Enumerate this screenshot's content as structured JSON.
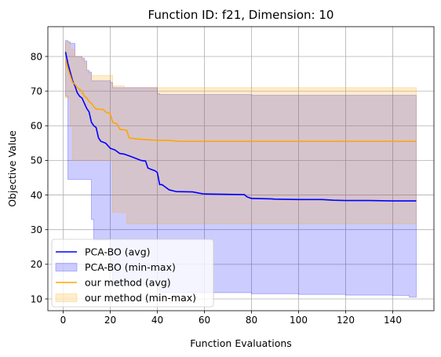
{
  "chart_data": {
    "type": "line",
    "title": "Function ID: f21, Dimension: 10",
    "xlabel": "Function Evaluations",
    "ylabel": "Objective Value",
    "xlim": [
      -6.5,
      157.5
    ],
    "ylim": [
      6.6,
      88.6
    ],
    "xticks": [
      0,
      20,
      40,
      60,
      80,
      100,
      120,
      140
    ],
    "yticks": [
      10,
      20,
      30,
      40,
      50,
      60,
      70,
      80
    ],
    "grid": true,
    "legend_position": "lower-left",
    "legend": [
      {
        "label": "PCA-BO (avg)",
        "kind": "line",
        "color": "#0000ff"
      },
      {
        "label": "PCA-BO (min-max)",
        "kind": "band",
        "color": "#0000ff"
      },
      {
        "label": "our method (avg)",
        "kind": "line",
        "color": "#ffa500"
      },
      {
        "label": "our method (min-max)",
        "kind": "band",
        "color": "#ffa500"
      }
    ],
    "series": [
      {
        "name": "PCA-BO (min-max)",
        "kind": "band",
        "color": "#0000ff",
        "fill_opacity": 0.2,
        "x": [
          1,
          2,
          3,
          5,
          6,
          8,
          9,
          10,
          11,
          12,
          13,
          20,
          21,
          40,
          41,
          80,
          100,
          120,
          140,
          147,
          150
        ],
        "upper": [
          84.6,
          84.2,
          83.8,
          80.0,
          80.0,
          79.5,
          78.7,
          76.0,
          75.5,
          73.0,
          73.0,
          72.5,
          71.0,
          69.3,
          69.0,
          68.8,
          68.8,
          68.8,
          68.8,
          68.8,
          68.8
        ],
        "lower": [
          68.5,
          44.5,
          44.5,
          44.5,
          44.5,
          44.5,
          44.5,
          44.5,
          44.5,
          33.0,
          27.0,
          21.0,
          14.0,
          12.5,
          11.8,
          11.5,
          11.3,
          11.1,
          11.0,
          10.5,
          10.5
        ]
      },
      {
        "name": "our method (min-max)",
        "kind": "band",
        "color": "#ffa500",
        "fill_opacity": 0.2,
        "x": [
          1,
          3,
          4,
          5,
          7,
          8,
          9,
          10,
          11,
          12,
          13,
          17,
          18,
          20,
          21,
          26,
          27,
          40,
          41,
          80,
          150
        ],
        "upper": [
          84.0,
          82.0,
          82.0,
          80.0,
          80.0,
          79.0,
          78.0,
          75.5,
          75.0,
          74.5,
          74.5,
          74.5,
          74.5,
          74.5,
          71.5,
          71.0,
          71.0,
          71.0,
          71.0,
          71.0,
          71.0
        ],
        "lower": [
          68.0,
          60.0,
          50.0,
          50.0,
          50.0,
          50.0,
          50.0,
          50.0,
          50.0,
          50.0,
          50.0,
          50.0,
          50.0,
          50.0,
          35.0,
          35.0,
          31.7,
          31.7,
          31.7,
          31.7,
          31.7
        ]
      },
      {
        "name": "PCA-BO (avg)",
        "kind": "line",
        "color": "#0000ff",
        "x": [
          1,
          2,
          3,
          4,
          5,
          6,
          7,
          8,
          9,
          10,
          11,
          12,
          13,
          14,
          15,
          16,
          18,
          20,
          22,
          24,
          26,
          28,
          30,
          33,
          35,
          36,
          37,
          39,
          40,
          41,
          42,
          43,
          45,
          48,
          55,
          58,
          60,
          70,
          77,
          78,
          80,
          88,
          90,
          100,
          110,
          115,
          120,
          130,
          140,
          150
        ],
        "values": [
          81.3,
          78.0,
          75.5,
          73.0,
          71.5,
          69.5,
          68.5,
          68.0,
          66.5,
          65.0,
          64.0,
          61.0,
          60.0,
          59.5,
          56.5,
          55.5,
          55.0,
          53.5,
          53.0,
          52.0,
          51.8,
          51.3,
          50.8,
          50.0,
          49.8,
          47.8,
          47.5,
          47.0,
          46.5,
          43.0,
          43.0,
          42.5,
          41.5,
          41.0,
          40.9,
          40.5,
          40.3,
          40.2,
          40.1,
          39.5,
          39.0,
          38.9,
          38.8,
          38.7,
          38.7,
          38.5,
          38.4,
          38.4,
          38.3,
          38.3
        ]
      },
      {
        "name": "our method (avg)",
        "kind": "line",
        "color": "#ffa500",
        "x": [
          1,
          2,
          3,
          4,
          5,
          6,
          8,
          9,
          10,
          11,
          12,
          13,
          14,
          17,
          18,
          20,
          21,
          23,
          24,
          27,
          28,
          30,
          31,
          35,
          40,
          44,
          48,
          49,
          60,
          100,
          150
        ],
        "values": [
          79.0,
          76.5,
          74.5,
          72.5,
          72.0,
          71.0,
          70.0,
          68.5,
          68.0,
          67.0,
          66.5,
          65.5,
          64.8,
          64.7,
          64.0,
          63.5,
          61.0,
          60.5,
          59.0,
          58.7,
          56.5,
          56.3,
          56.2,
          56.0,
          55.8,
          55.8,
          55.6,
          55.5,
          55.5,
          55.5,
          55.5
        ]
      }
    ]
  }
}
